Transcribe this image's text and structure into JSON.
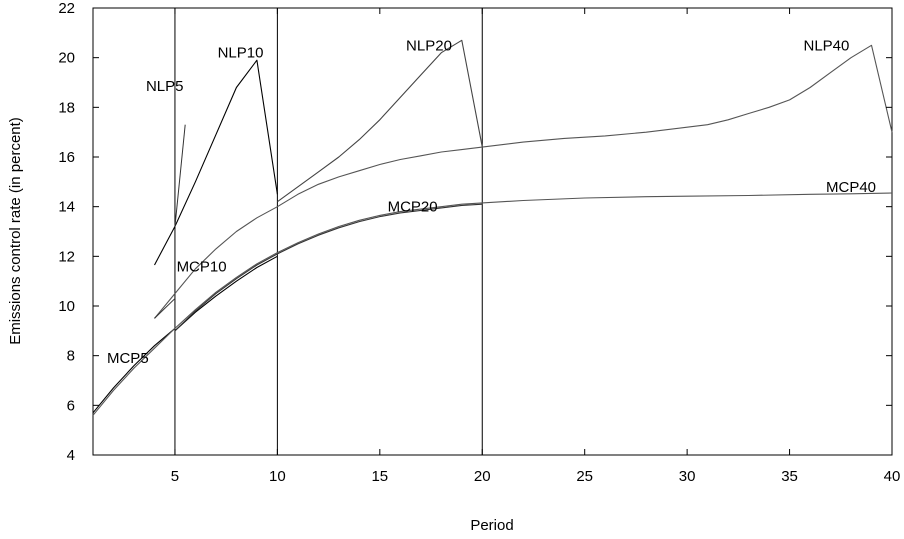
{
  "chart_data": {
    "type": "line",
    "title": "",
    "xlabel": "Period",
    "ylabel": "Emissions control rate (in percent)",
    "xlim": [
      1,
      40
    ],
    "ylim": [
      4,
      22
    ],
    "xticks": [
      5,
      10,
      15,
      20,
      25,
      30,
      35,
      40
    ],
    "yticks": [
      4,
      6,
      8,
      10,
      12,
      14,
      16,
      18,
      20,
      22
    ],
    "grid": false,
    "vertical_lines": [
      5,
      10,
      20
    ],
    "series": [
      {
        "name": "NLP5",
        "color": "#000000",
        "x": [
          4,
          5
        ],
        "y": [
          11.65,
          13.2
        ]
      },
      {
        "name": "NLP10",
        "color": "#000000",
        "x": [
          5,
          6,
          7,
          8,
          9,
          10
        ],
        "y": [
          13.2,
          15.0,
          16.9,
          18.8,
          19.9,
          14.5
        ]
      },
      {
        "name": "NLP20",
        "color": "#444444",
        "x": [
          10,
          11,
          12,
          13,
          14,
          15,
          16,
          17,
          18,
          19,
          20
        ],
        "y": [
          14.2,
          14.8,
          15.4,
          16.0,
          16.7,
          17.5,
          18.4,
          19.3,
          20.2,
          20.7,
          16.4
        ]
      },
      {
        "name": "NLP40",
        "color": "#555555",
        "x": [
          4,
          5,
          6,
          7,
          8,
          9,
          10,
          11,
          12,
          13,
          14,
          15,
          16,
          17,
          18,
          19,
          20,
          22,
          24,
          26,
          28,
          30,
          31,
          32,
          33,
          34,
          35,
          36,
          37,
          38,
          39,
          40
        ],
        "y": [
          9.5,
          10.5,
          11.5,
          12.3,
          13.0,
          13.55,
          14.0,
          14.5,
          14.9,
          15.2,
          15.45,
          15.7,
          15.9,
          16.05,
          16.2,
          16.3,
          16.4,
          16.6,
          16.75,
          16.85,
          17.0,
          17.2,
          17.3,
          17.5,
          17.75,
          18.0,
          18.3,
          18.8,
          19.4,
          20.0,
          20.5,
          17.0
        ]
      },
      {
        "name": "MCP5",
        "color": "#000000",
        "x": [
          1,
          2,
          3,
          4,
          5
        ],
        "y": [
          5.7,
          6.7,
          7.6,
          8.4,
          9.1
        ]
      },
      {
        "name": "MCP10",
        "color": "#000000",
        "x": [
          5,
          6,
          7,
          8,
          9,
          10
        ],
        "y": [
          9.0,
          9.75,
          10.4,
          11.0,
          11.55,
          12.0
        ]
      },
      {
        "name": "MCP20",
        "color": "#333333",
        "x": [
          5,
          6,
          7,
          8,
          9,
          10,
          11,
          12,
          13,
          14,
          15,
          16,
          17,
          18,
          19,
          20
        ],
        "y": [
          9.0,
          9.8,
          10.5,
          11.1,
          11.65,
          12.1,
          12.5,
          12.85,
          13.15,
          13.4,
          13.6,
          13.75,
          13.85,
          13.95,
          14.05,
          14.1
        ]
      },
      {
        "name": "MCP40",
        "color": "#555555",
        "x": [
          1,
          2,
          3,
          4,
          5,
          6,
          7,
          8,
          9,
          10,
          11,
          12,
          13,
          14,
          15,
          16,
          17,
          18,
          19,
          20,
          22,
          25,
          28,
          30,
          33,
          36,
          38,
          40
        ],
        "y": [
          5.6,
          6.6,
          7.5,
          8.3,
          9.1,
          9.85,
          10.55,
          11.15,
          11.7,
          12.15,
          12.55,
          12.9,
          13.2,
          13.45,
          13.65,
          13.8,
          13.9,
          14.0,
          14.1,
          14.15,
          14.25,
          14.35,
          14.4,
          14.42,
          14.45,
          14.5,
          14.52,
          14.55
        ]
      }
    ],
    "annotations": [
      {
        "text": "NLP5",
        "x": 4.5,
        "y": 18.85,
        "pointer": [
          [
            5.5,
            17.3
          ],
          [
            5.0,
            13.2
          ]
        ]
      },
      {
        "text": "NLP10",
        "x": 8.2,
        "y": 20.2
      },
      {
        "text": "NLP20",
        "x": 17.4,
        "y": 20.5
      },
      {
        "text": "NLP40",
        "x": 36.8,
        "y": 20.5
      },
      {
        "text": "MCP5",
        "x": 2.7,
        "y": 7.9,
        "pointer": [
          [
            4.0,
            9.5
          ],
          [
            5.0,
            10.3
          ]
        ]
      },
      {
        "text": "MCP10",
        "x": 6.3,
        "y": 11.6
      },
      {
        "text": "MCP20",
        "x": 16.6,
        "y": 14.0
      },
      {
        "text": "MCP40",
        "x": 38.0,
        "y": 14.8
      }
    ]
  }
}
